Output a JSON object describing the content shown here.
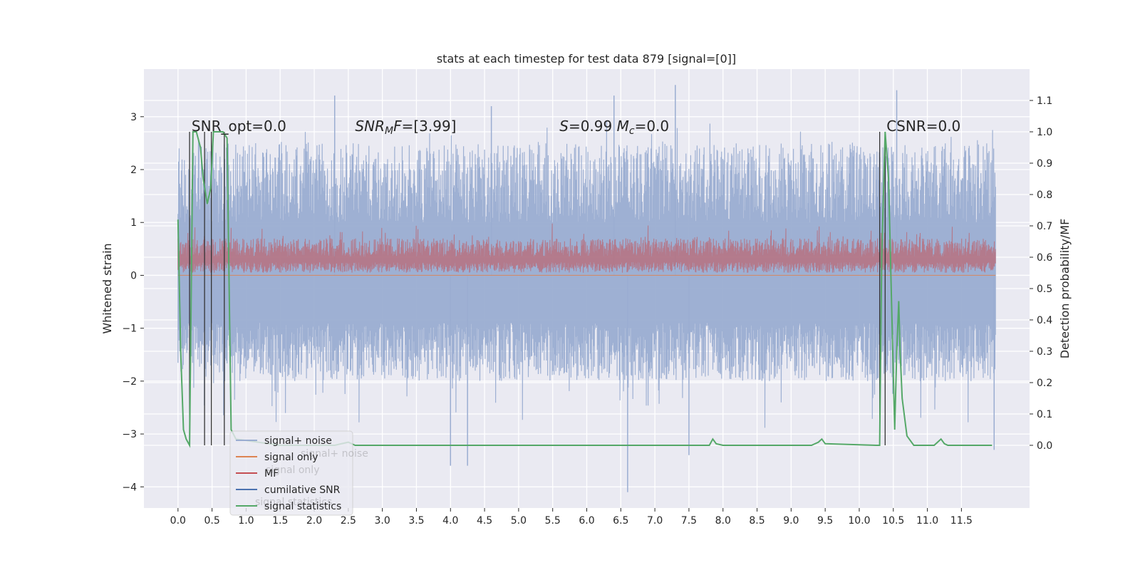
{
  "chart_data": {
    "type": "line",
    "title": "stats at each timestep for test data 879 [signal=[0]]",
    "xlabel": "",
    "ylabel": "Whitened strain",
    "y2label": "Detection probability/MF",
    "xlim": [
      -0.5,
      12.5
    ],
    "ylim": [
      -4.4,
      3.9
    ],
    "y2lim": [
      -0.2,
      1.2
    ],
    "xticks": [
      0.0,
      0.5,
      1.0,
      1.5,
      2.0,
      2.5,
      3.0,
      3.5,
      4.0,
      4.5,
      5.0,
      5.5,
      6.0,
      6.5,
      7.0,
      7.5,
      8.0,
      8.5,
      9.0,
      9.5,
      10.0,
      10.5,
      11.0,
      11.5
    ],
    "xtick_labels": [
      "0.0",
      "0.5",
      "1.0",
      "1.5",
      "2.0",
      "2.5",
      "3.0",
      "3.5",
      "4.0",
      "4.5",
      "5.0",
      "5.5",
      "6.0",
      "6.5",
      "7.0",
      "7.5",
      "8.0",
      "8.5",
      "9.0",
      "9.5",
      "10.0",
      "10.5",
      "11.0",
      "11.5"
    ],
    "yticks": [
      -4,
      -3,
      -2,
      -1,
      0,
      1,
      2,
      3
    ],
    "ytick_labels": [
      "−4",
      "−3",
      "−2",
      "−1",
      "0",
      "1",
      "2",
      "3"
    ],
    "y2ticks": [
      0.0,
      0.1,
      0.2,
      0.3,
      0.4,
      0.5,
      0.6,
      0.7,
      0.8,
      0.9,
      1.0,
      1.1
    ],
    "y2tick_labels": [
      "0.0",
      "0.1",
      "0.2",
      "0.3",
      "0.4",
      "0.5",
      "0.6",
      "0.7",
      "0.8",
      "0.9",
      "1.0",
      "1.1"
    ],
    "grid": true,
    "legend_placement": "lower-left",
    "colors": {
      "signal_noise": "#9aadd1",
      "signal_only": "#dd8452",
      "mf": "#c44e52",
      "cumulative_snr": "#4c72b0",
      "signal_statistics": "#55a868",
      "markers": "#333333",
      "background": "#eaeaf2"
    },
    "annotations": [
      {
        "x": 0.2,
        "text_plain": "SNR_opt=0.0"
      },
      {
        "x": 2.6,
        "text_italic": "SNR",
        "text_sub": "M",
        "text_italic2": "F",
        "text_after": "=[3.99]"
      },
      {
        "x": 5.6,
        "text_italic": "S",
        "text_after": "=0.99   ",
        "text_italic3": "M",
        "text_sub2": "c",
        "text_after2": "=0.0"
      },
      {
        "x": 10.4,
        "text_plain": "CSNR=0.0"
      }
    ],
    "legend": [
      "signal+ noise",
      "signal only",
      "MF",
      "cumilative SNR",
      "signal statistics"
    ],
    "legend_ghost": [
      "signal+ noise",
      "signal only",
      "signal statistics"
    ],
    "series": [
      {
        "name": "signal+ noise",
        "kind": "noise_band",
        "x_range": [
          0.0,
          12.0
        ],
        "typical_range": [
          -2.0,
          2.5
        ],
        "spikes": [
          [
            2.3,
            3.4
          ],
          [
            4.6,
            3.2
          ],
          [
            6.4,
            3.4
          ],
          [
            7.3,
            3.6
          ],
          [
            10.55,
            3.5
          ],
          [
            4.0,
            -3.6
          ],
          [
            4.25,
            -3.6
          ],
          [
            6.6,
            -4.1
          ],
          [
            7.5,
            -3.4
          ],
          [
            11.98,
            -3.3
          ]
        ]
      },
      {
        "name": "MF",
        "kind": "noise_band",
        "x_range": [
          0.0,
          12.0
        ],
        "typical_range": [
          0.0,
          0.9
        ]
      },
      {
        "name": "signal statistics",
        "x": [
          0.0,
          0.04,
          0.08,
          0.12,
          0.17,
          0.22,
          0.27,
          0.33,
          0.37,
          0.43,
          0.48,
          0.52,
          0.57,
          0.62,
          0.66,
          0.72,
          0.78,
          0.85,
          1.5,
          2.3,
          2.5,
          2.6,
          3.8,
          5.5,
          7.8,
          7.85,
          7.9,
          8.0,
          9.3,
          9.4,
          9.45,
          9.5,
          10.25,
          10.3,
          10.33,
          10.38,
          10.43,
          10.48,
          10.52,
          10.55,
          10.58,
          10.6,
          10.63,
          10.7,
          10.8,
          10.9,
          11.1,
          11.15,
          11.2,
          11.25,
          11.3,
          11.5,
          11.95
        ],
        "y": [
          0.72,
          0.3,
          0.05,
          0.02,
          0.0,
          1.0,
          1.0,
          0.95,
          0.85,
          0.77,
          0.82,
          1.0,
          1.0,
          1.0,
          1.0,
          0.98,
          0.05,
          0.02,
          0.0,
          0.0,
          0.01,
          0.0,
          0.0,
          0.0,
          0.0,
          0.02,
          0.005,
          0.0,
          0.0,
          0.01,
          0.02,
          0.005,
          0.0,
          0.0,
          0.6,
          1.0,
          0.85,
          0.4,
          0.05,
          0.3,
          0.46,
          0.3,
          0.15,
          0.03,
          0.0,
          0.0,
          0.0,
          0.01,
          0.02,
          0.005,
          0.0,
          0.0,
          0.0
        ]
      }
    ],
    "vertical_markers": [
      0.17,
      0.39,
      0.49,
      0.68,
      10.3,
      10.38
    ]
  }
}
